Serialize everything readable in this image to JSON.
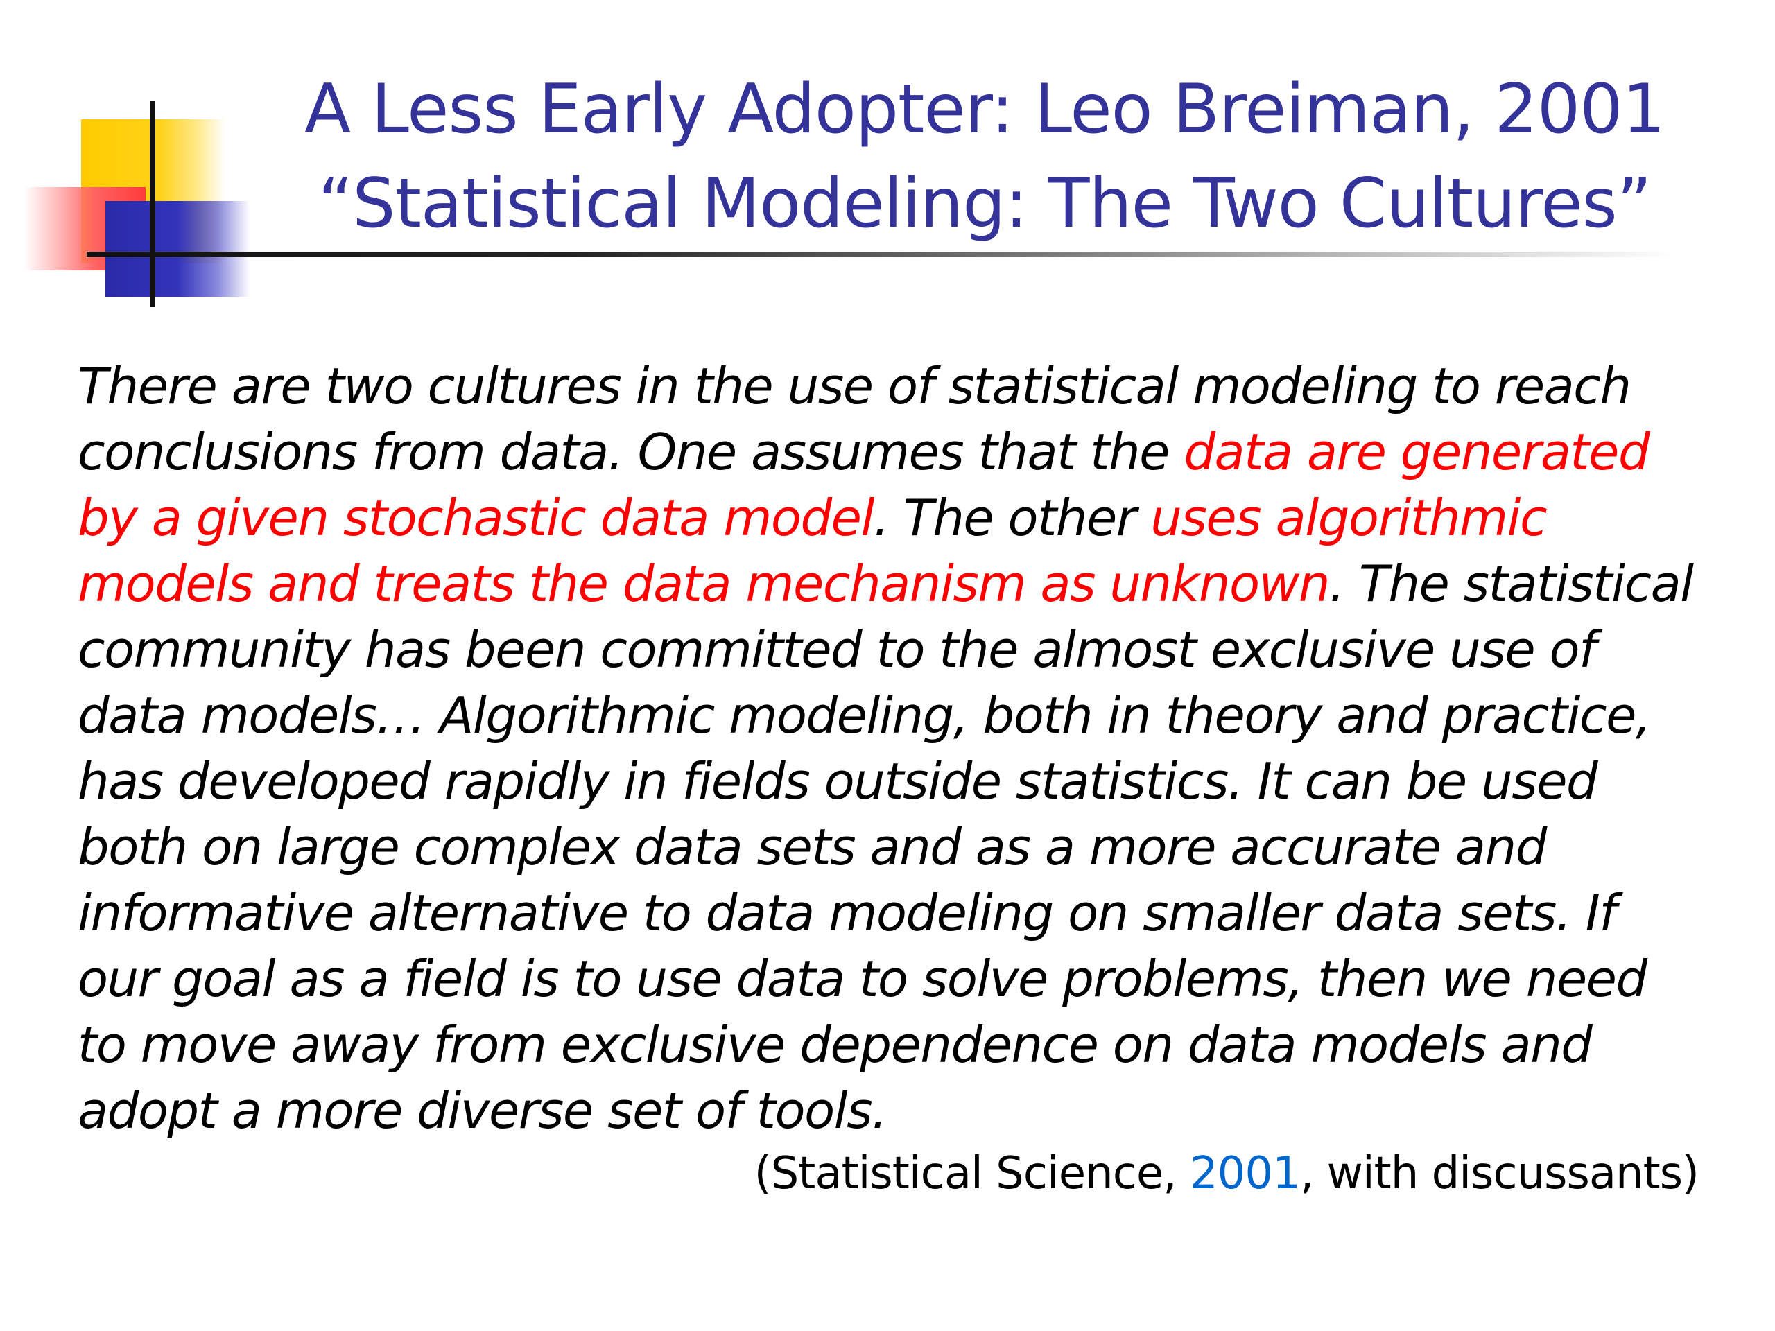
{
  "title": {
    "line1": "A Less Early Adopter: Leo Breiman, 2001",
    "line2": "“Statistical Modeling: The Two Cultures”"
  },
  "quote": {
    "l1": "There are two cultures in the use of statistical modeling to reach",
    "l2a": "conclusions from data. One assumes that the ",
    "l2b": "data are generated",
    "l3a": "by a given stochastic data model",
    "l3b": ". The other ",
    "l3c": "uses algorithmic",
    "l4a": "models and treats the data mechanism as unknown",
    "l4b": ". The statistical",
    "l5": "community has been committed to the almost exclusive use of",
    "l6": "data models… Algorithmic modeling, both in theory and practice,",
    "l7": "has developed rapidly in fields outside statistics. It can be used",
    "l8": "both on large complex data sets and as a more accurate and",
    "l9": "informative alternative to data modeling on smaller data sets. If",
    "l10": "our goal as a field is to use data to solve problems, then we need",
    "l11": "to move away from exclusive dependence on data models and",
    "l12": "adopt a more diverse set of tools."
  },
  "citation": {
    "before": "(Statistical Science, ",
    "year": "2001",
    "after": ", with discussants)"
  },
  "colors": {
    "title": "#333399",
    "highlight": "#ff0000",
    "year_link": "#0066cc"
  }
}
